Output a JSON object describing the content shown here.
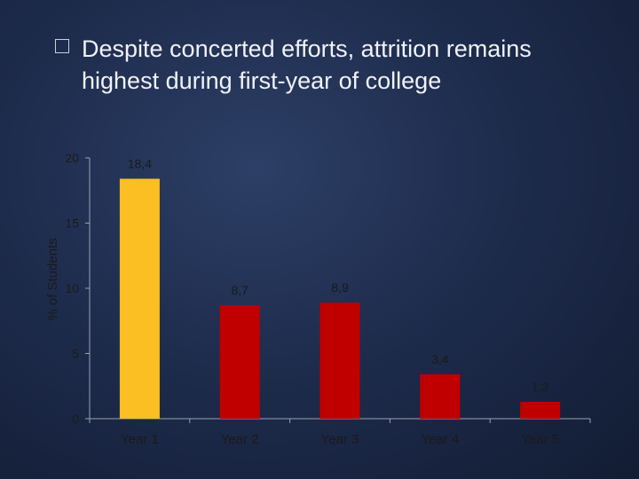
{
  "slide": {
    "bullet_icon": "box-bullet-icon",
    "bullet_text": "Despite concerted efforts, attrition remains highest during first-year of college"
  },
  "colors": {
    "highlight_bar": "#fbbf24",
    "bar": "#c00000",
    "axis": "#9aa3b2",
    "text": "#1a1a1a"
  },
  "chart_data": {
    "type": "bar",
    "categories": [
      "Year 1",
      "Year 2",
      "Year 3",
      "Year 4",
      "Year 5"
    ],
    "values": [
      18.4,
      8.7,
      8.9,
      3.4,
      1.3
    ],
    "data_labels": [
      "18,4",
      "8,7",
      "8,9",
      "3,4",
      "1,3"
    ],
    "highlight_index": 0,
    "ylabel": "% of Students",
    "xlabel": "",
    "ylim": [
      0,
      20
    ],
    "yticks": [
      0,
      5,
      10,
      15,
      20
    ],
    "grid": false,
    "legend": "none"
  }
}
